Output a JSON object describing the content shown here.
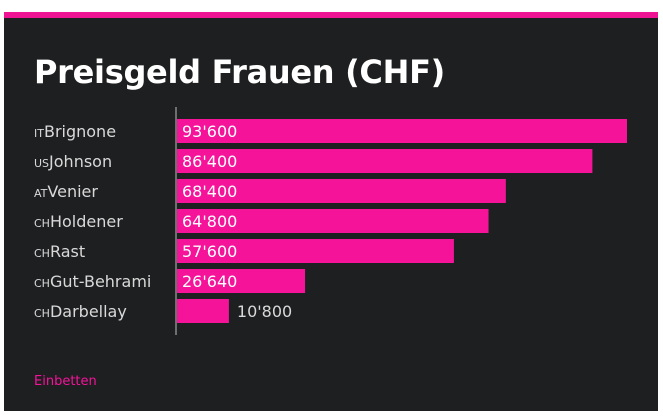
{
  "colors": {
    "background": "#1e1f21",
    "accent": "#ee1493",
    "bar": "#f5139a",
    "text": "#ffffff",
    "muted_text": "#d9d9d9"
  },
  "embed_label": "Einbetten",
  "chart_data": {
    "type": "bar",
    "orientation": "horizontal",
    "title": "Preisgeld Frauen (CHF)",
    "categories": [
      {
        "country": "IT",
        "name": "Brignone"
      },
      {
        "country": "US",
        "name": "Johnson"
      },
      {
        "country": "AT",
        "name": "Venier"
      },
      {
        "country": "CH",
        "name": "Holdener"
      },
      {
        "country": "CH",
        "name": "Rast"
      },
      {
        "country": "CH",
        "name": "Gut-Behrami"
      },
      {
        "country": "CH",
        "name": "Darbellay"
      }
    ],
    "values": [
      93600,
      86400,
      68400,
      64800,
      57600,
      26640,
      10800
    ],
    "value_labels": [
      "93'600",
      "86'400",
      "68'400",
      "64'800",
      "57'600",
      "26'640",
      "10'800"
    ],
    "xlim": [
      0,
      93600
    ],
    "grid": false,
    "legend": "none"
  }
}
